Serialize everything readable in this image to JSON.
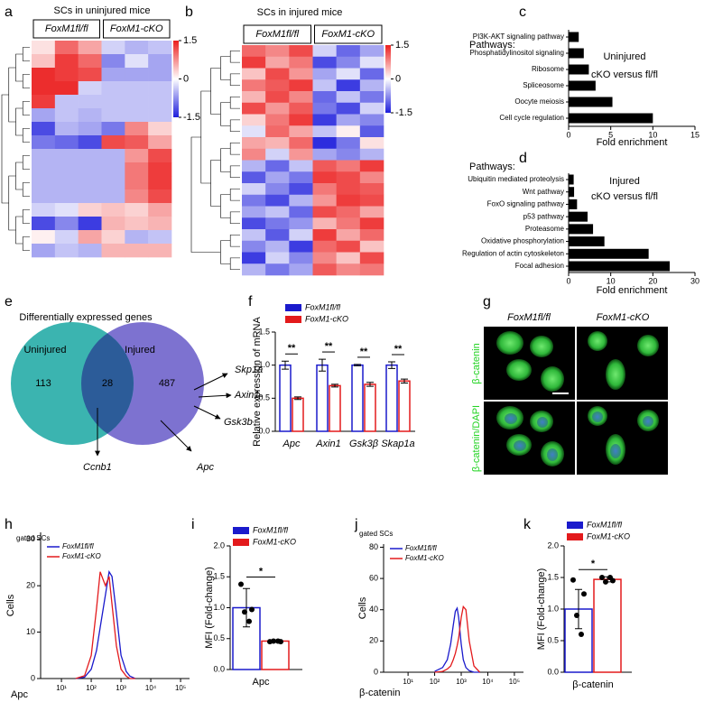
{
  "panel_labels": [
    "a",
    "b",
    "c",
    "d",
    "e",
    "f",
    "g",
    "h",
    "i",
    "j",
    "k"
  ],
  "chart_data": [
    {
      "type": "heatmap",
      "title": "SCs in uninjured mice",
      "column_groups": [
        "FoxM1fl/fl",
        "FoxM1-cKO"
      ],
      "zlim": [
        -1.5,
        1.5
      ],
      "zticks": [
        1.5,
        0,
        -1.5
      ],
      "values": [
        [
          0.2,
          1.0,
          0.6,
          -0.3,
          -0.5,
          -0.4
        ],
        [
          0.4,
          1.3,
          1.0,
          -0.8,
          -0.2,
          -0.6
        ],
        [
          1.4,
          1.3,
          1.2,
          -0.6,
          -0.6,
          -0.6
        ],
        [
          1.4,
          1.4,
          -0.3,
          -0.4,
          -0.4,
          -0.4
        ],
        [
          1.3,
          -0.4,
          -0.4,
          -0.4,
          -0.4,
          -0.4
        ],
        [
          -0.6,
          -0.4,
          -0.5,
          -0.4,
          -0.4,
          -0.4
        ],
        [
          -1.2,
          -0.5,
          -0.6,
          -0.9,
          0.8,
          0.3
        ],
        [
          -0.9,
          -1.0,
          -1.2,
          1.2,
          1.1,
          0.6
        ],
        [
          -0.5,
          -0.5,
          -0.5,
          -0.5,
          0.7,
          1.2
        ],
        [
          -0.5,
          -0.5,
          -0.5,
          -0.5,
          0.9,
          1.3
        ],
        [
          -0.5,
          -0.5,
          -0.5,
          -0.5,
          0.9,
          1.3
        ],
        [
          -0.5,
          -0.5,
          -0.5,
          -0.5,
          0.8,
          1.2
        ],
        [
          -0.3,
          -0.2,
          0.3,
          0.4,
          0.3,
          0.6
        ],
        [
          -1.2,
          -0.8,
          -1.3,
          0.5,
          0.4,
          0.5
        ],
        [
          0.1,
          -0.3,
          0.6,
          0.3,
          -0.5,
          -0.4
        ],
        [
          -0.6,
          -0.4,
          -0.5,
          0.5,
          0.5,
          0.5
        ]
      ]
    },
    {
      "type": "heatmap",
      "title": "SCs in injured mice",
      "column_groups": [
        "FoxM1fl/fl",
        "FoxM1-cKO"
      ],
      "zlim": [
        -1.5,
        1.5
      ],
      "zticks": [
        1.5,
        0,
        -1.5
      ],
      "values": [
        [
          1.0,
          0.8,
          1.2,
          -0.3,
          -1.0,
          -0.6
        ],
        [
          1.3,
          0.6,
          0.9,
          -1.2,
          -0.8,
          -0.2
        ],
        [
          0.4,
          1.2,
          0.7,
          -0.6,
          -0.2,
          -1.0
        ],
        [
          0.9,
          1.1,
          1.3,
          -0.4,
          -1.3,
          -0.5
        ],
        [
          0.5,
          1.2,
          0.8,
          -1.0,
          -0.4,
          -0.9
        ],
        [
          1.2,
          0.7,
          1.1,
          -0.9,
          -1.2,
          -0.3
        ],
        [
          0.3,
          0.9,
          1.3,
          -1.3,
          -0.6,
          -0.8
        ],
        [
          -0.2,
          1.0,
          0.6,
          -0.4,
          0.1,
          -1.1
        ],
        [
          0.6,
          0.5,
          1.0,
          -1.4,
          -0.9,
          0.2
        ],
        [
          0.8,
          -0.3,
          0.7,
          -0.6,
          -0.8,
          -0.5
        ],
        [
          -0.5,
          -1.0,
          -0.4,
          1.1,
          0.9,
          1.3
        ],
        [
          -1.1,
          -0.6,
          -0.9,
          1.3,
          1.2,
          0.8
        ],
        [
          -0.3,
          -0.8,
          -1.2,
          0.9,
          1.2,
          1.1
        ],
        [
          -0.9,
          -1.2,
          -0.5,
          0.7,
          1.3,
          1.2
        ],
        [
          -0.6,
          -0.4,
          -1.0,
          1.2,
          1.0,
          0.6
        ],
        [
          -1.2,
          -0.9,
          -0.7,
          0.5,
          0.9,
          1.3
        ],
        [
          -0.4,
          -1.1,
          -0.3,
          1.3,
          0.6,
          1.0
        ],
        [
          -0.8,
          -0.5,
          -1.3,
          1.0,
          1.2,
          0.4
        ],
        [
          -1.3,
          -0.3,
          -0.8,
          0.8,
          0.4,
          1.2
        ],
        [
          -0.5,
          -0.9,
          -0.6,
          1.1,
          0.8,
          0.9
        ]
      ]
    },
    {
      "type": "hbar",
      "header": "Pathways:",
      "annotation": [
        "Uninjured",
        "cKO versus fl/fl"
      ],
      "categories": [
        "PI3K-AKT signaling pathway",
        "Phosphatidylinositol signaling",
        "Ribosome",
        "Spliceosome",
        "Oocyte meiosis",
        "Cell cycle regulation"
      ],
      "values": [
        1.2,
        1.8,
        2.4,
        3.2,
        5.2,
        10
      ],
      "color": "#000000",
      "xlim": [
        0,
        15
      ],
      "xticks": [
        0,
        5,
        10,
        15
      ],
      "xlabel": "Fold enrichment"
    },
    {
      "type": "hbar",
      "header": "Pathways:",
      "annotation": [
        "Injured",
        "cKO versus fl/fl"
      ],
      "categories": [
        "Ubiquitin mediated proteolysis",
        "Wnt pathway",
        "FoxO signaling pathway",
        "p53 pathway",
        "Proteasome",
        "Oxidative phosphorylation",
        "Regulation of actin cytoskeleton",
        "Focal adhesion"
      ],
      "values": [
        1.2,
        1.3,
        2,
        4.5,
        5.8,
        8.5,
        19,
        24
      ],
      "color": "#000000",
      "xlim": [
        0,
        30
      ],
      "xticks": [
        0,
        10,
        20,
        30
      ],
      "xlabel": "Fold enrichment"
    },
    {
      "type": "bar",
      "ylabel": "Relative expression of mRNA",
      "categories": [
        "Apc",
        "Axin1",
        "Gsk3β",
        "Skap1a"
      ],
      "series": [
        {
          "name": "FoxM1fl/fl",
          "color": "#1a1acc",
          "values": [
            1,
            1,
            1,
            1
          ],
          "errors": [
            0.06,
            0.09,
            0.01,
            0.05
          ]
        },
        {
          "name": "FoxM1-cKO",
          "color": "#e31a1c",
          "values": [
            0.5,
            0.69,
            0.71,
            0.76
          ],
          "errors": [
            0.02,
            0.02,
            0.03,
            0.03
          ]
        }
      ],
      "significance": [
        "**",
        "**",
        "**",
        "**"
      ],
      "ylim": [
        0,
        1.5
      ],
      "yticks": [
        {
          "value": 0,
          "label": "0.0"
        },
        0.5,
        {
          "value": 1,
          "label": "1.0"
        },
        1.5
      ]
    },
    {
      "type": "line",
      "annotation": "gated SCs",
      "log_x": true,
      "x": [
        30,
        60,
        100,
        150,
        200,
        300,
        400,
        500,
        700,
        1000,
        1500,
        2000,
        3000
      ],
      "series": [
        {
          "name": "FoxM1fl/fl",
          "color": "#1a1acc",
          "values": [
            0,
            0.3,
            2,
            6,
            11,
            18,
            23,
            22,
            14,
            5,
            1.5,
            0.5,
            0
          ]
        },
        {
          "name": "FoxM1-cKO",
          "color": "#e31a1c",
          "values": [
            0,
            0.6,
            5,
            15,
            23,
            20,
            22,
            16,
            7,
            2,
            0.5,
            0,
            0
          ]
        }
      ],
      "xlim": [
        2,
        200000
      ],
      "xticks": [
        {
          "value": 10,
          "label": "10¹"
        },
        {
          "value": 100,
          "label": "10²"
        },
        {
          "value": 1000,
          "label": "10³"
        },
        {
          "value": 10000,
          "label": "10⁴"
        },
        {
          "value": 100000,
          "label": "10⁵"
        }
      ],
      "ylim": [
        0,
        31.5
      ],
      "yticks": [
        0,
        10,
        20,
        30
      ],
      "ylabel": "Cells",
      "xlabel": "Apc"
    },
    {
      "type": "bar",
      "ylabel": "MFI (Fold-change)",
      "categories": [
        "Apc"
      ],
      "series": [
        {
          "name": "FoxM1fl/fl",
          "color": "#1a1acc",
          "values": [
            1.0
          ],
          "errors": [
            0.31
          ],
          "points": [
            [
              1.38,
              0.97,
              0.93,
              0.78
            ]
          ]
        },
        {
          "name": "FoxM1-cKO",
          "color": "#e31a1c",
          "values": [
            0.46
          ],
          "errors": [
            0.02
          ],
          "points": [
            [
              0.45,
              0.45,
              0.46,
              0.46
            ]
          ]
        }
      ],
      "significance": [
        "*"
      ],
      "ylim": [
        0,
        2
      ],
      "yticks": [
        {
          "value": 0,
          "label": "0.0"
        },
        0.5,
        {
          "value": 1,
          "label": "1.0"
        },
        1.5,
        {
          "value": 2,
          "label": "2.0"
        }
      ]
    },
    {
      "type": "line",
      "annotation": "gated SCs",
      "log_x": true,
      "x": [
        100,
        200,
        300,
        400,
        500,
        600,
        700,
        800,
        1000,
        1200,
        1500,
        2000,
        3000,
        5000
      ],
      "series": [
        {
          "name": "FoxM1fl/fl",
          "color": "#1a1acc",
          "values": [
            0.5,
            3,
            8,
            18,
            30,
            39,
            41,
            35,
            18,
            8,
            3,
            1,
            0,
            0
          ]
        },
        {
          "name": "FoxM1-cKO",
          "color": "#e31a1c",
          "values": [
            0,
            0.5,
            2,
            4,
            8,
            12,
            17,
            22,
            35,
            42,
            40,
            20,
            4,
            0
          ]
        }
      ],
      "xlim": [
        1.2,
        220000
      ],
      "xticks": [
        {
          "value": 10,
          "label": "10¹"
        },
        {
          "value": 100,
          "label": "10²"
        },
        {
          "value": 1000,
          "label": "10³"
        },
        {
          "value": 10000,
          "label": "10⁴"
        },
        {
          "value": 100000,
          "label": "10⁵"
        }
      ],
      "ylim": [
        0,
        82
      ],
      "yticks": [
        0,
        20,
        40,
        60,
        80
      ],
      "ylabel": "Cells",
      "xlabel": "β-catenin"
    },
    {
      "type": "bar",
      "ylabel": "MFI (Fold-change)",
      "categories": [
        "β-catenin"
      ],
      "series": [
        {
          "name": "FoxM1fl/fl",
          "color": "#1a1acc",
          "values": [
            1.0
          ],
          "errors": [
            0.31
          ],
          "points": [
            [
              1.46,
              1.24,
              0.9,
              0.6
            ]
          ]
        },
        {
          "name": "FoxM1-cKO",
          "color": "#e31a1c",
          "values": [
            1.47
          ],
          "errors": [
            0.04
          ],
          "points": [
            [
              1.5,
              1.45,
              1.43,
              1.5
            ]
          ]
        }
      ],
      "significance": [
        "*"
      ],
      "ylim": [
        0,
        2
      ],
      "yticks": [
        {
          "value": 0,
          "label": "0.0"
        },
        0.5,
        {
          "value": 1,
          "label": "1.0"
        },
        1.5,
        {
          "value": 2,
          "label": "2.0"
        }
      ]
    }
  ],
  "venn": {
    "title": "Differentially expressed genes",
    "sets": [
      "Uninjured",
      "Injured"
    ],
    "counts": [
      "113",
      "28",
      "487"
    ],
    "genes": [
      "Skp1a",
      "Axin1",
      "Gsk3b",
      "Apc",
      "Ccnb1"
    ]
  },
  "micrographs": {
    "columns": [
      "FoxM1fl/fl",
      "FoxM1-cKO"
    ],
    "rows": [
      "β-catenin",
      "β-catenin/DAPI"
    ]
  }
}
